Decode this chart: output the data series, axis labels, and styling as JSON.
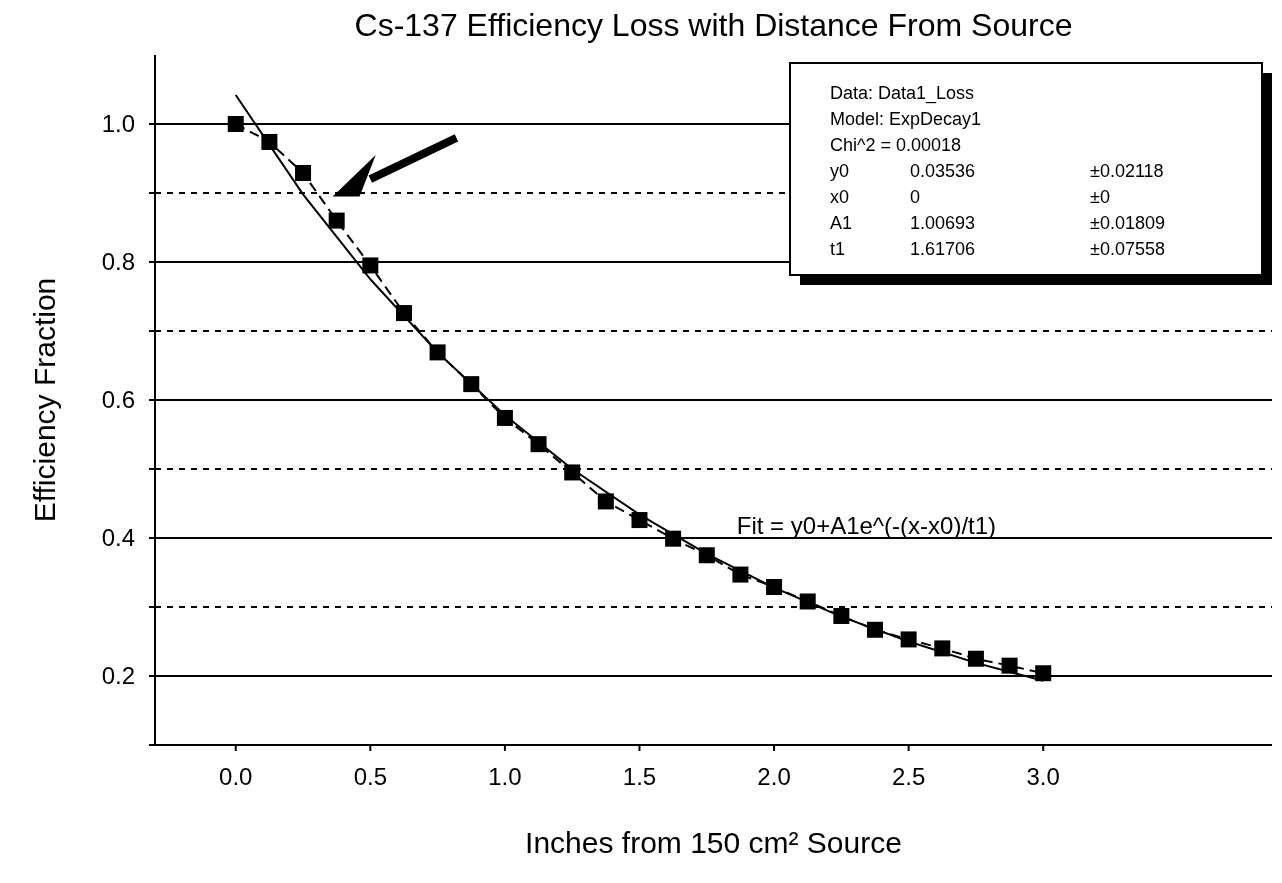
{
  "chart_data": {
    "type": "line",
    "title": "Cs-137 Efficiency Loss with Distance From Source",
    "xlabel": "Inches from 150 cm² Source",
    "ylabel": "Efficiency Fraction",
    "x": [
      0,
      0.125,
      0.25,
      0.375,
      0.5,
      0.625,
      0.75,
      0.875,
      1,
      1.125,
      1.25,
      1.375,
      1.5,
      1.625,
      1.75,
      1.875,
      2,
      2.125,
      2.25,
      2.375,
      2.5,
      2.625,
      2.75,
      2.875,
      3
    ],
    "series": [
      {
        "color": "#000000",
        "marker": "square",
        "line_style": "dashed",
        "values": [
          1.0,
          0.974,
          0.929,
          0.86,
          0.795,
          0.726,
          0.669,
          0.623,
          0.574,
          0.536,
          0.495,
          0.453,
          0.426,
          0.399,
          0.375,
          0.347,
          0.329,
          0.308,
          0.287,
          0.267,
          0.253,
          0.24,
          0.225,
          0.215,
          0.204
        ]
      },
      {
        "name": "Fit = y0+A1e^(-(x-x0)/t1)",
        "color": "#000000",
        "marker": "none",
        "line_style": "solid",
        "x": [
          0,
          0.25,
          0.5,
          0.75,
          1,
          1.25,
          1.5,
          1.75,
          2,
          2.25,
          2.5,
          2.75,
          3
        ],
        "values": [
          1.042,
          0.898,
          0.775,
          0.669,
          0.578,
          0.5,
          0.434,
          0.377,
          0.328,
          0.286,
          0.25,
          0.219,
          0.193
        ]
      }
    ],
    "xlim": [
      -0.3,
      3.85
    ],
    "xticks": [
      {
        "value": 0,
        "label": "0.0"
      },
      {
        "value": 0.5,
        "label": "0.5"
      },
      {
        "value": 1,
        "label": "1.0"
      },
      {
        "value": 1.5,
        "label": "1.5"
      },
      {
        "value": 2,
        "label": "2.0"
      },
      {
        "value": 2.5,
        "label": "2.5"
      },
      {
        "value": 3,
        "label": "3.0"
      }
    ],
    "ylim": [
      0.1,
      1.1
    ],
    "yticks": [
      {
        "value": 0.1,
        "label": null
      },
      {
        "value": 0.2,
        "label": "0.2"
      },
      {
        "value": 0.3,
        "label": null
      },
      {
        "value": 0.4,
        "label": "0.4"
      },
      {
        "value": 0.5,
        "label": null
      },
      {
        "value": 0.6,
        "label": "0.6"
      },
      {
        "value": 0.7,
        "label": null
      },
      {
        "value": 0.8,
        "label": "0.8"
      },
      {
        "value": 0.9,
        "label": null
      },
      {
        "value": 1.0,
        "label": "1.0"
      }
    ],
    "grid": "y",
    "annotations": [
      "Data: Data1_Loss",
      "Model: ExpDecay1",
      "Chi^2 = 0.00018",
      "y0\t0.03536\t±0.02118",
      "x0\t0\t±0",
      "A1\t1.00693\t±0.01809",
      "t1\t1.61706\t±0.07558"
    ]
  }
}
